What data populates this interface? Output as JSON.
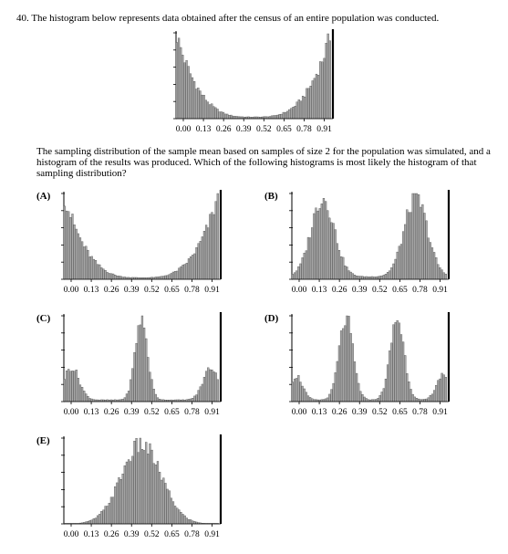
{
  "question": {
    "number": "40.",
    "text": "The histogram below represents data obtained after the census of an entire population was conducted."
  },
  "prompt": {
    "text": "The sampling distribution of the sample mean based on samples of size 2 for the population was simulated, and a histogram of the results was produced. Which of the following histograms is most likely the histogram of that sampling distribution?"
  },
  "x_tick_labels": [
    "0.00",
    "0.13",
    "0.26",
    "0.39",
    "0.52",
    "0.65",
    "0.78",
    "0.91"
  ],
  "options": [
    {
      "letter": "(A)"
    },
    {
      "letter": "(B)"
    },
    {
      "letter": "(C)"
    },
    {
      "letter": "(D)"
    },
    {
      "letter": "(E)"
    }
  ],
  "chart_data": [
    {
      "id": "population",
      "type": "bar",
      "shape": "U-shaped, highest near 0 and near 1",
      "x_tick_labels": [
        "0.00",
        "0.13",
        "0.26",
        "0.39",
        "0.52",
        "0.65",
        "0.78",
        "0.91"
      ],
      "xlim": [
        0,
        1
      ],
      "bins": 80,
      "peaks": [
        {
          "x": 0.0,
          "rel_height": 1.0
        },
        {
          "x": 1.0,
          "rel_height": 1.0
        }
      ],
      "minimum": {
        "x": 0.5,
        "rel_height": 0.02
      }
    },
    {
      "id": "option-A",
      "type": "bar",
      "shape": "U-shaped, same as population",
      "x_tick_labels": [
        "0.00",
        "0.13",
        "0.26",
        "0.39",
        "0.52",
        "0.65",
        "0.78",
        "0.91"
      ],
      "xlim": [
        0,
        1
      ],
      "peaks": [
        {
          "x": 0.0,
          "rel_height": 1.0
        },
        {
          "x": 1.0,
          "rel_height": 1.0
        }
      ]
    },
    {
      "id": "option-B",
      "type": "bar",
      "shape": "bimodal, two equal peaks",
      "x_tick_labels": [
        "0.00",
        "0.13",
        "0.26",
        "0.39",
        "0.52",
        "0.65",
        "0.78",
        "0.91"
      ],
      "xlim": [
        0,
        1
      ],
      "peaks": [
        {
          "x": 0.2,
          "rel_height": 0.92
        },
        {
          "x": 0.8,
          "rel_height": 0.92
        }
      ]
    },
    {
      "id": "option-C",
      "type": "bar",
      "shape": "trimodal, tall center peak, smaller peaks near ends",
      "x_tick_labels": [
        "0.00",
        "0.13",
        "0.26",
        "0.39",
        "0.52",
        "0.65",
        "0.78",
        "0.91"
      ],
      "xlim": [
        0,
        1
      ],
      "peaks": [
        {
          "x": 0.05,
          "rel_height": 0.4
        },
        {
          "x": 0.5,
          "rel_height": 0.95
        },
        {
          "x": 0.95,
          "rel_height": 0.4
        }
      ]
    },
    {
      "id": "option-D",
      "type": "bar",
      "shape": "four peaks, two tall inner peaks, two small outer peaks",
      "x_tick_labels": [
        "0.00",
        "0.13",
        "0.26",
        "0.39",
        "0.52",
        "0.65",
        "0.78",
        "0.91"
      ],
      "xlim": [
        0,
        1
      ],
      "peaks": [
        {
          "x": 0.03,
          "rel_height": 0.3
        },
        {
          "x": 0.35,
          "rel_height": 0.95
        },
        {
          "x": 0.68,
          "rel_height": 0.95
        },
        {
          "x": 0.97,
          "rel_height": 0.3
        }
      ]
    },
    {
      "id": "option-E",
      "type": "bar",
      "shape": "unimodal, bell-shaped, centered",
      "x_tick_labels": [
        "0.00",
        "0.13",
        "0.26",
        "0.39",
        "0.52",
        "0.65",
        "0.78",
        "0.91"
      ],
      "xlim": [
        0,
        1
      ],
      "peaks": [
        {
          "x": 0.5,
          "rel_height": 0.92
        }
      ]
    }
  ]
}
